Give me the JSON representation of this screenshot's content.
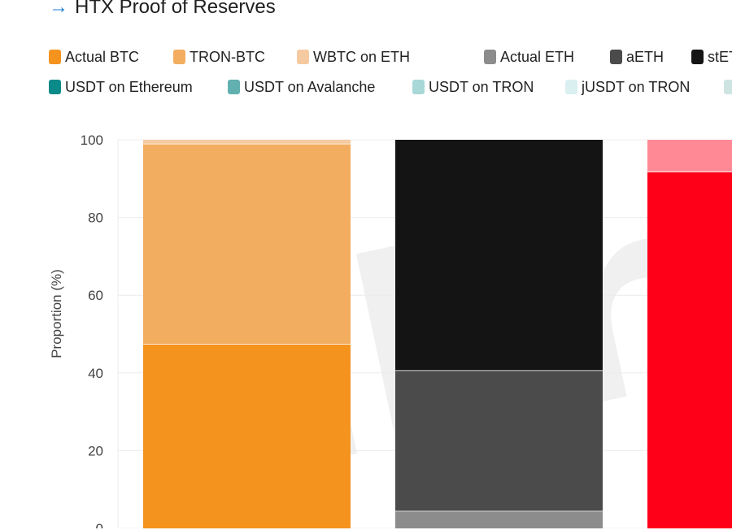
{
  "header": {
    "arrow": "→",
    "title": "HTX Proof of Reserves"
  },
  "legend_row1": [
    {
      "label": "Actual BTC",
      "color": "#f5931f"
    },
    {
      "label": "TRON-BTC",
      "color": "#f3ad60"
    },
    {
      "label": "WBTC on ETH",
      "color": "#f5caa0"
    },
    {
      "label": "Actual ETH",
      "color": "#8c8c8c"
    },
    {
      "label": "aETH",
      "color": "#4b4b4b"
    },
    {
      "label": "stETH",
      "color": "#141414"
    }
  ],
  "legend_row2": [
    {
      "label": "USDT on Ethereum",
      "color": "#0b8a8a"
    },
    {
      "label": "USDT on Avalanche",
      "color": "#62b0b0"
    },
    {
      "label": "USDT on TRON",
      "color": "#a9d8d8"
    },
    {
      "label": "jUSDT on TRON",
      "color": "#daf0f0"
    },
    {
      "label": "",
      "color": "#cfe3e3"
    }
  ],
  "watermark": "iProto",
  "chart_data": {
    "type": "bar",
    "stacked": true,
    "ylabel": "Proportion (%)",
    "ylim": [
      0,
      100
    ],
    "yticks": [
      0,
      20,
      40,
      60,
      80,
      100
    ],
    "grid": true,
    "bars": [
      {
        "segments": [
          {
            "name": "Actual BTC",
            "value": 47.5,
            "color": "#f5931f"
          },
          {
            "name": "TRON-BTC",
            "value": 51.5,
            "color": "#f3ad60"
          },
          {
            "name": "WBTC on ETH",
            "value": 1.0,
            "color": "#f5caa0"
          }
        ]
      },
      {
        "segments": [
          {
            "name": "Actual ETH",
            "value": 4.5,
            "color": "#8c8c8c"
          },
          {
            "name": "aETH",
            "value": 36.2,
            "color": "#4b4b4b"
          },
          {
            "name": "stETH",
            "value": 59.3,
            "color": "#141414"
          }
        ]
      },
      {
        "segments": [
          {
            "name": "",
            "value": 91.8,
            "color": "#ff0019"
          },
          {
            "name": "",
            "value": 8.2,
            "color": "#ff8a95"
          }
        ]
      }
    ]
  }
}
